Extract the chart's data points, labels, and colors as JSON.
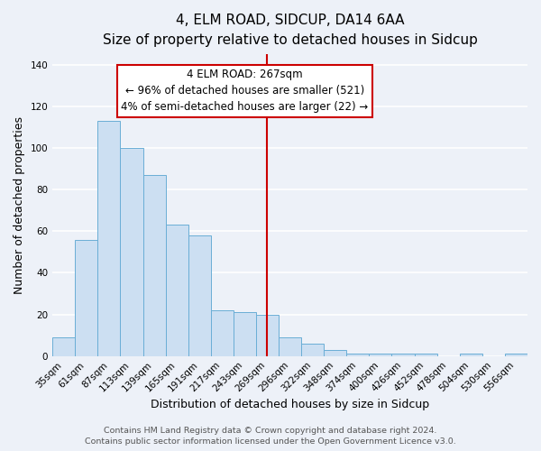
{
  "title": "4, ELM ROAD, SIDCUP, DA14 6AA",
  "subtitle": "Size of property relative to detached houses in Sidcup",
  "xlabel": "Distribution of detached houses by size in Sidcup",
  "ylabel": "Number of detached properties",
  "bin_labels": [
    "35sqm",
    "61sqm",
    "87sqm",
    "113sqm",
    "139sqm",
    "165sqm",
    "191sqm",
    "217sqm",
    "243sqm",
    "269sqm",
    "296sqm",
    "322sqm",
    "348sqm",
    "374sqm",
    "400sqm",
    "426sqm",
    "452sqm",
    "478sqm",
    "504sqm",
    "530sqm",
    "556sqm"
  ],
  "bar_values": [
    9,
    56,
    113,
    100,
    87,
    63,
    58,
    22,
    21,
    20,
    9,
    6,
    3,
    1,
    1,
    1,
    1,
    0,
    1,
    0,
    1
  ],
  "bar_color": "#ccdff2",
  "bar_edge_color": "#6aaed6",
  "vline_index": 9,
  "vline_color": "#cc0000",
  "ylim": [
    0,
    145
  ],
  "yticks": [
    0,
    20,
    40,
    60,
    80,
    100,
    120,
    140
  ],
  "annotation_title": "4 ELM ROAD: 267sqm",
  "annotation_line1": "← 96% of detached houses are smaller (521)",
  "annotation_line2": "4% of semi-detached houses are larger (22) →",
  "annotation_box_facecolor": "#ffffff",
  "annotation_box_edgecolor": "#cc0000",
  "footer1": "Contains HM Land Registry data © Crown copyright and database right 2024.",
  "footer2": "Contains public sector information licensed under the Open Government Licence v3.0.",
  "background_color": "#edf1f8",
  "grid_color": "#ffffff",
  "title_fontsize": 11,
  "subtitle_fontsize": 9.5,
  "axis_label_fontsize": 9,
  "tick_fontsize": 7.5,
  "annotation_fontsize": 8.5,
  "footer_fontsize": 6.8
}
